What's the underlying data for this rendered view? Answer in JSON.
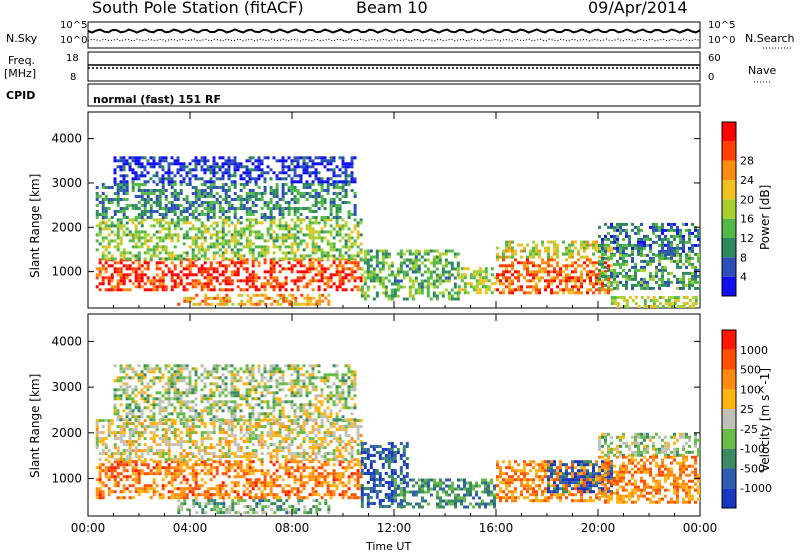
{
  "header": {
    "station": "South Pole Station (fitACF)",
    "beam": "Beam 10",
    "date": "09/Apr/2014"
  },
  "status_panels": {
    "nsky_label": "N.Sky",
    "nsky_ticks": [
      "10^5",
      "10^0"
    ],
    "nsearch_label": "N.Search",
    "freq_label": "Freq.",
    "freq_unit": "[MHz]",
    "freq_ticks": [
      "18",
      "8"
    ],
    "nave_label": "Nave",
    "nave_ticks": [
      "60",
      "0"
    ],
    "cpid_label": "CPID",
    "cpid_value": "normal (fast) 151 RF"
  },
  "chart_data": [
    {
      "type": "heatmap",
      "name": "power",
      "xlabel": "Time UT",
      "ylabel": "Slant Range [km]",
      "x_ticks": [
        "00:00",
        "04:00",
        "08:00",
        "12:00",
        "16:00",
        "20:00",
        "00:00"
      ],
      "x_range_hours": [
        0,
        24
      ],
      "y_ticks": [
        1000,
        2000,
        3000,
        4000
      ],
      "y_range_km": [
        180,
        4600
      ],
      "colorbar": {
        "label": "Power [dB]",
        "tick_labels": [
          "4",
          "8",
          "12",
          "16",
          "20",
          "24",
          "28"
        ],
        "colors": [
          "#1010f0",
          "#2c4fb8",
          "#2e8a5e",
          "#52b848",
          "#a8d030",
          "#f0c020",
          "#ff8c10",
          "#ff4000",
          "#ff0000"
        ]
      },
      "regions": [
        {
          "t0": 0.3,
          "t1": 10.7,
          "r0": 600,
          "r1": 1300,
          "level": 0.9
        },
        {
          "t0": 0.3,
          "t1": 10.7,
          "r0": 1300,
          "r1": 2200,
          "level": 0.45
        },
        {
          "t0": 0.3,
          "t1": 10.5,
          "r0": 2200,
          "r1": 3000,
          "level": 0.25
        },
        {
          "t0": 1.0,
          "t1": 10.5,
          "r0": 3000,
          "r1": 3600,
          "level": 0.05
        },
        {
          "t0": 3.5,
          "t1": 9.5,
          "r0": 250,
          "r1": 500,
          "level": 0.7
        },
        {
          "t0": 10.7,
          "t1": 14.5,
          "r0": 400,
          "r1": 1500,
          "level": 0.35
        },
        {
          "t0": 14.5,
          "t1": 16.0,
          "r0": 500,
          "r1": 1100,
          "level": 0.5
        },
        {
          "t0": 16.0,
          "t1": 20.5,
          "r0": 500,
          "r1": 1300,
          "level": 0.82
        },
        {
          "t0": 16.0,
          "t1": 20.5,
          "r0": 1300,
          "r1": 1700,
          "level": 0.55
        },
        {
          "t0": 20.0,
          "t1": 23.9,
          "r0": 1400,
          "r1": 2100,
          "level": 0.2
        },
        {
          "t0": 20.0,
          "t1": 23.9,
          "r0": 600,
          "r1": 1400,
          "level": 0.3
        },
        {
          "t0": 20.5,
          "t1": 23.9,
          "r0": 200,
          "r1": 450,
          "level": 0.5
        }
      ]
    },
    {
      "type": "heatmap",
      "name": "velocity",
      "xlabel": "Time UT",
      "ylabel": "Slant Range [km]",
      "x_ticks": [
        "00:00",
        "04:00",
        "08:00",
        "12:00",
        "16:00",
        "20:00",
        "00:00"
      ],
      "x_range_hours": [
        0,
        24
      ],
      "y_ticks": [
        1000,
        2000,
        3000,
        4000
      ],
      "y_range_km": [
        180,
        4600
      ],
      "colorbar": {
        "label": "Velocity [m s^-1]",
        "tick_labels": [
          "1000",
          "500",
          "100",
          "25",
          "-25",
          "-100",
          "-500",
          "-1000"
        ],
        "colors": [
          "#1838c0",
          "#2f5db0",
          "#3b8a62",
          "#66bc46",
          "#c0c0b8",
          "#ffb410",
          "#ff8a10",
          "#ff5000",
          "#ff1800"
        ]
      },
      "regions": [
        {
          "t0": 0.3,
          "t1": 10.7,
          "r0": 600,
          "r1": 1400,
          "level": 0.78
        },
        {
          "t0": 0.3,
          "t1": 10.7,
          "r0": 1400,
          "r1": 2300,
          "level": 0.55
        },
        {
          "t0": 1.0,
          "t1": 10.5,
          "r0": 2300,
          "r1": 3500,
          "level": 0.45
        },
        {
          "t0": 3.5,
          "t1": 9.5,
          "r0": 250,
          "r1": 550,
          "level": 0.35
        },
        {
          "t0": 10.7,
          "t1": 12.5,
          "r0": 400,
          "r1": 1800,
          "level": 0.1
        },
        {
          "t0": 12.0,
          "t1": 16.0,
          "r0": 400,
          "r1": 1000,
          "level": 0.25
        },
        {
          "t0": 16.0,
          "t1": 20.5,
          "r0": 500,
          "r1": 1400,
          "level": 0.75
        },
        {
          "t0": 18.0,
          "t1": 20.5,
          "r0": 700,
          "r1": 1400,
          "level": 0.1
        },
        {
          "t0": 20.0,
          "t1": 23.9,
          "r0": 1500,
          "r1": 2000,
          "level": 0.45
        },
        {
          "t0": 20.0,
          "t1": 23.9,
          "r0": 500,
          "r1": 1500,
          "level": 0.75
        }
      ]
    }
  ]
}
